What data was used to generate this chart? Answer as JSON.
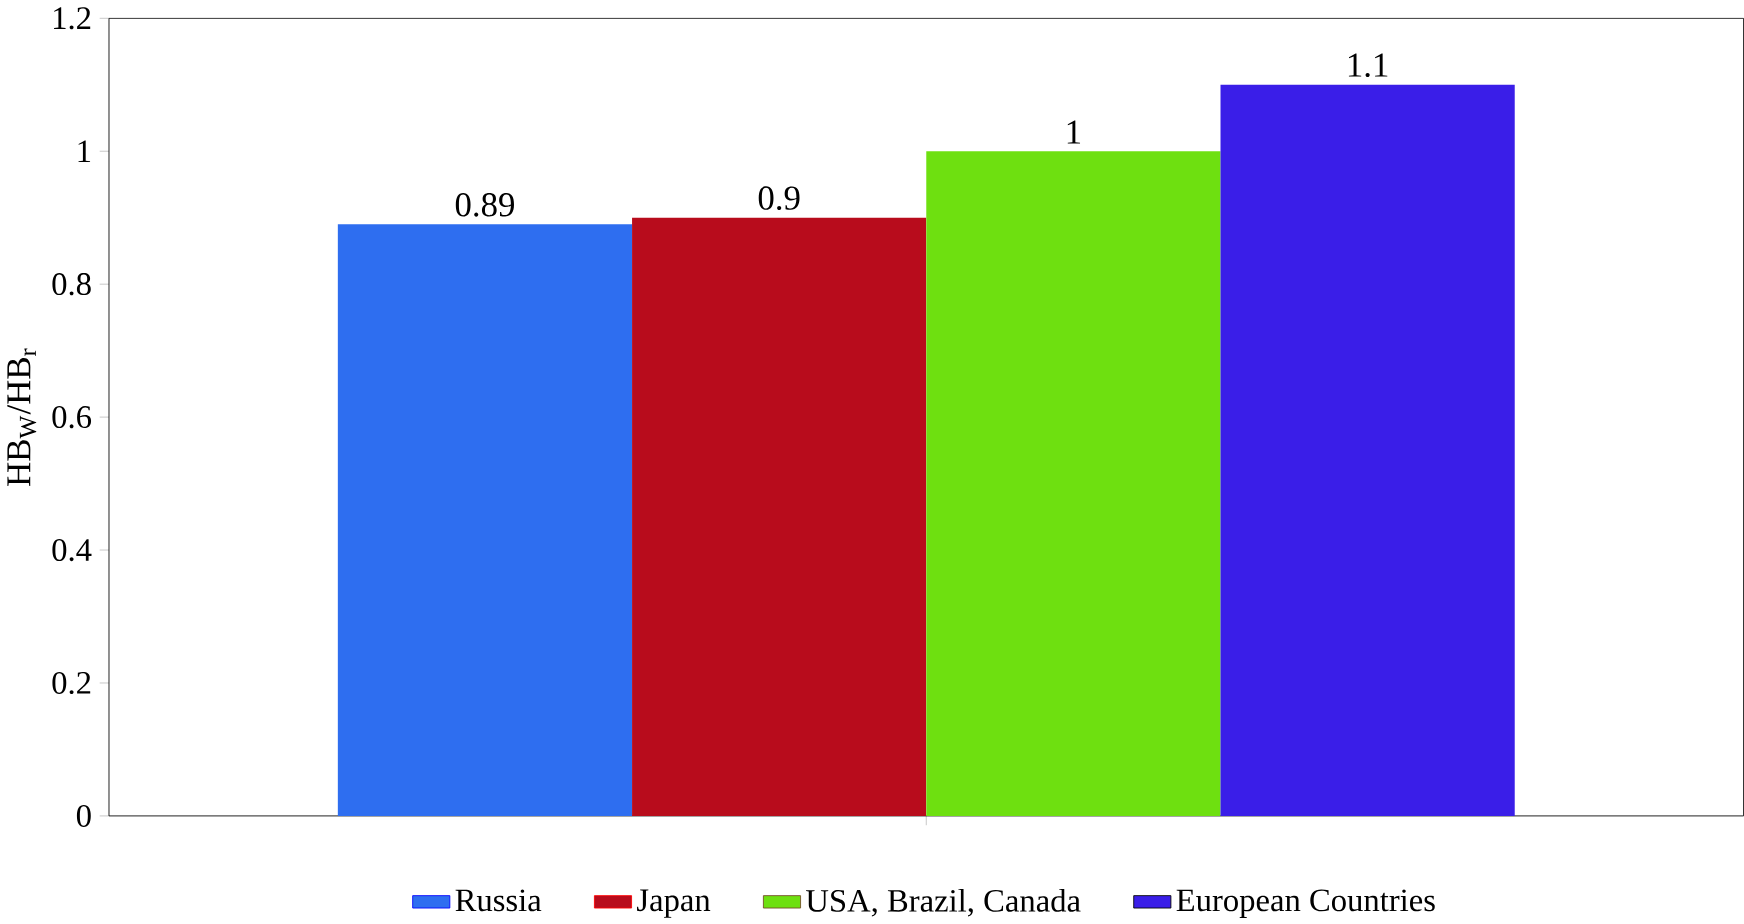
{
  "chart_data": {
    "type": "bar",
    "ylabel": "HB$_{W}$/HB$_{r}$",
    "categories": [
      null
    ],
    "series": [
      {
        "name": "Russia",
        "color": "#2e6ef0",
        "values": [
          0.89
        ]
      },
      {
        "name": "Japan",
        "color": "#b80c1c",
        "values": [
          0.9
        ]
      },
      {
        "name": "USA, Brazil, Canada",
        "color": "#6ee010",
        "values": [
          1
        ]
      },
      {
        "name": "European Countries",
        "color": "#3a1ee8",
        "values": [
          1.1
        ]
      }
    ],
    "ylim": [
      0,
      1.2
    ],
    "yticks": [
      0,
      0.2,
      0.4,
      0.6,
      0.8,
      1,
      1.2
    ],
    "data_labels": true,
    "legend": "bottom",
    "grid": false
  }
}
